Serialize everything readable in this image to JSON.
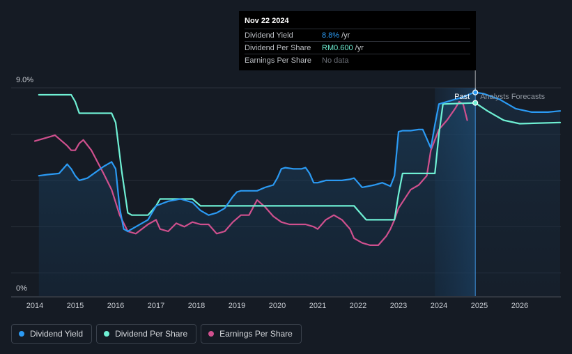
{
  "tooltip": {
    "date": "Nov 22 2024",
    "rows": [
      {
        "label": "Dividend Yield",
        "value": "8.8%",
        "unit": "/yr",
        "color": "#2b9af3"
      },
      {
        "label": "Dividend Per Share",
        "value": "RM0.600",
        "unit": "/yr",
        "color": "#6ff0d4"
      },
      {
        "label": "Earnings Per Share",
        "value": "No data",
        "unit": "",
        "color": "#6c7078"
      }
    ]
  },
  "labels": {
    "past": "Past",
    "forecast": "Analysts Forecasts"
  },
  "legend": [
    {
      "label": "Dividend Yield",
      "color": "#2b9af3"
    },
    {
      "label": "Dividend Per Share",
      "color": "#6ff0d4"
    },
    {
      "label": "Earnings Per Share",
      "color": "#d0508e"
    }
  ],
  "chart_data": {
    "type": "line",
    "title": "",
    "xlabel": "",
    "ylabel": "",
    "xlim": [
      2014.0,
      2027.0
    ],
    "ylim": [
      0,
      9.0
    ],
    "y_ticks": [
      "9.0%",
      "0%"
    ],
    "x_ticks": [
      "2014",
      "2015",
      "2016",
      "2017",
      "2018",
      "2019",
      "2020",
      "2021",
      "2022",
      "2023",
      "2024",
      "2025",
      "2026"
    ],
    "today_x": 2024.9,
    "forecast_start_x": 2023.9,
    "series": [
      {
        "name": "Dividend Yield",
        "color": "#2b9af3",
        "x": [
          2014.1,
          2014.3,
          2014.6,
          2014.8,
          2014.9,
          2015.0,
          2015.1,
          2015.3,
          2015.5,
          2015.7,
          2015.9,
          2016.0,
          2016.1,
          2016.2,
          2016.3,
          2016.5,
          2016.8,
          2017.0,
          2017.3,
          2017.6,
          2017.9,
          2018.1,
          2018.3,
          2018.5,
          2018.7,
          2018.9,
          2019.0,
          2019.1,
          2019.3,
          2019.5,
          2019.7,
          2019.9,
          2020.0,
          2020.1,
          2020.2,
          2020.4,
          2020.6,
          2020.7,
          2020.8,
          2020.9,
          2021.0,
          2021.2,
          2021.4,
          2021.6,
          2021.8,
          2021.9,
          2022.0,
          2022.1,
          2022.4,
          2022.6,
          2022.8,
          2022.9,
          2023.0,
          2023.1,
          2023.3,
          2023.5,
          2023.6,
          2023.7,
          2023.8,
          2023.9,
          2024.0,
          2024.2,
          2024.4,
          2024.6,
          2024.8,
          2024.9,
          2025.1,
          2025.5,
          2025.9,
          2026.3,
          2026.7,
          2027.0
        ],
        "values": [
          5.2,
          5.25,
          5.3,
          5.7,
          5.5,
          5.2,
          5.0,
          5.1,
          5.35,
          5.6,
          5.8,
          5.5,
          3.8,
          2.9,
          2.8,
          3.0,
          3.3,
          3.9,
          4.1,
          4.2,
          4.05,
          3.7,
          3.5,
          3.6,
          3.8,
          4.3,
          4.5,
          4.55,
          4.55,
          4.55,
          4.7,
          4.8,
          5.1,
          5.5,
          5.55,
          5.5,
          5.5,
          5.55,
          5.3,
          4.9,
          4.9,
          5.0,
          5.0,
          5.0,
          5.05,
          5.1,
          4.9,
          4.7,
          4.8,
          4.9,
          4.75,
          5.2,
          7.1,
          7.15,
          7.15,
          7.2,
          7.2,
          6.8,
          6.4,
          7.4,
          8.3,
          8.4,
          8.5,
          8.6,
          8.75,
          8.8,
          8.75,
          8.5,
          8.1,
          7.95,
          7.95,
          8.0
        ]
      },
      {
        "name": "Dividend Per Share",
        "color": "#6ff0d4",
        "x": [
          2014.1,
          2014.9,
          2015.0,
          2015.1,
          2015.9,
          2016.0,
          2016.15,
          2016.3,
          2016.4,
          2016.8,
          2016.9,
          2017.0,
          2017.1,
          2017.9,
          2018.1,
          2018.3,
          2021.9,
          2022.0,
          2022.2,
          2022.9,
          2023.0,
          2023.1,
          2023.9,
          2024.0,
          2024.1,
          2024.9,
          2025.2,
          2025.6,
          2026.0,
          2027.0
        ],
        "values": [
          8.7,
          8.7,
          8.4,
          7.9,
          7.9,
          7.5,
          5.4,
          3.6,
          3.5,
          3.5,
          3.7,
          3.9,
          4.2,
          4.2,
          3.9,
          3.9,
          3.9,
          3.7,
          3.3,
          3.3,
          4.4,
          5.3,
          5.3,
          7.0,
          8.3,
          8.35,
          8.0,
          7.6,
          7.45,
          7.5
        ]
      },
      {
        "name": "Earnings Per Share",
        "color": "#d0508e",
        "x": [
          2014.0,
          2014.3,
          2014.5,
          2014.8,
          2014.9,
          2015.0,
          2015.1,
          2015.2,
          2015.4,
          2015.7,
          2015.9,
          2016.1,
          2016.3,
          2016.5,
          2016.8,
          2017.0,
          2017.1,
          2017.3,
          2017.5,
          2017.7,
          2017.9,
          2018.1,
          2018.3,
          2018.5,
          2018.7,
          2018.9,
          2019.1,
          2019.3,
          2019.5,
          2019.7,
          2019.9,
          2020.1,
          2020.3,
          2020.5,
          2020.7,
          2020.9,
          2021.0,
          2021.2,
          2021.4,
          2021.6,
          2021.8,
          2021.9,
          2022.1,
          2022.3,
          2022.5,
          2022.7,
          2022.8,
          2022.9,
          2023.0,
          2023.3,
          2023.5,
          2023.7,
          2023.8,
          2024.0,
          2024.2,
          2024.4,
          2024.5,
          2024.6,
          2024.7
        ],
        "values": [
          6.7,
          6.85,
          6.95,
          6.5,
          6.3,
          6.3,
          6.6,
          6.75,
          6.3,
          5.3,
          4.6,
          3.5,
          2.8,
          2.7,
          3.1,
          3.3,
          2.9,
          2.8,
          3.15,
          3.0,
          3.2,
          3.1,
          3.1,
          2.7,
          2.8,
          3.2,
          3.5,
          3.5,
          4.15,
          3.85,
          3.45,
          3.2,
          3.1,
          3.1,
          3.1,
          3.0,
          2.9,
          3.3,
          3.5,
          3.3,
          2.9,
          2.5,
          2.3,
          2.2,
          2.2,
          2.6,
          2.9,
          3.3,
          3.8,
          4.6,
          4.8,
          5.2,
          6.3,
          7.2,
          7.6,
          8.1,
          8.4,
          8.3,
          7.6
        ]
      }
    ]
  }
}
